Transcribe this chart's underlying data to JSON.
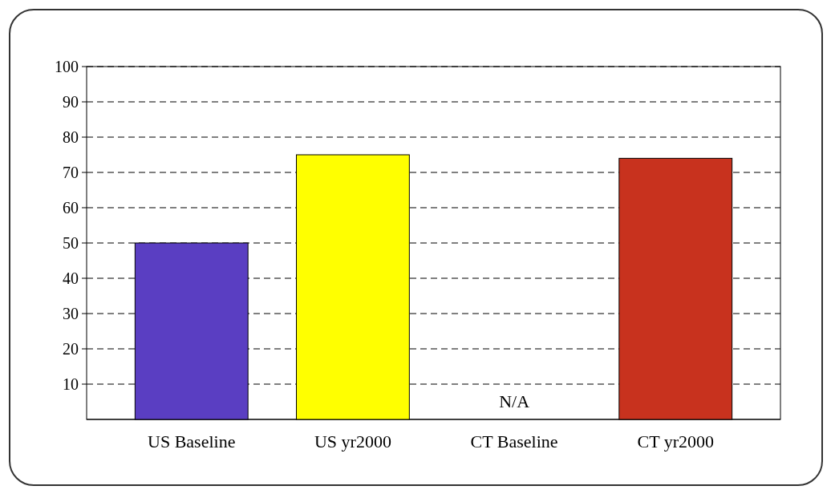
{
  "chart_data": {
    "type": "bar",
    "categories": [
      "US Baseline",
      "US yr2000",
      "CT Baseline",
      "CT yr2000"
    ],
    "values": [
      50,
      75,
      null,
      74
    ],
    "colors": [
      "#5a3ec2",
      "#ffff00",
      null,
      "#c8321e"
    ],
    "ylim": [
      0,
      100
    ],
    "yticks": [
      10,
      20,
      30,
      40,
      50,
      60,
      70,
      80,
      90,
      100
    ],
    "grid": "y",
    "annotations": [
      "N/A"
    ]
  }
}
